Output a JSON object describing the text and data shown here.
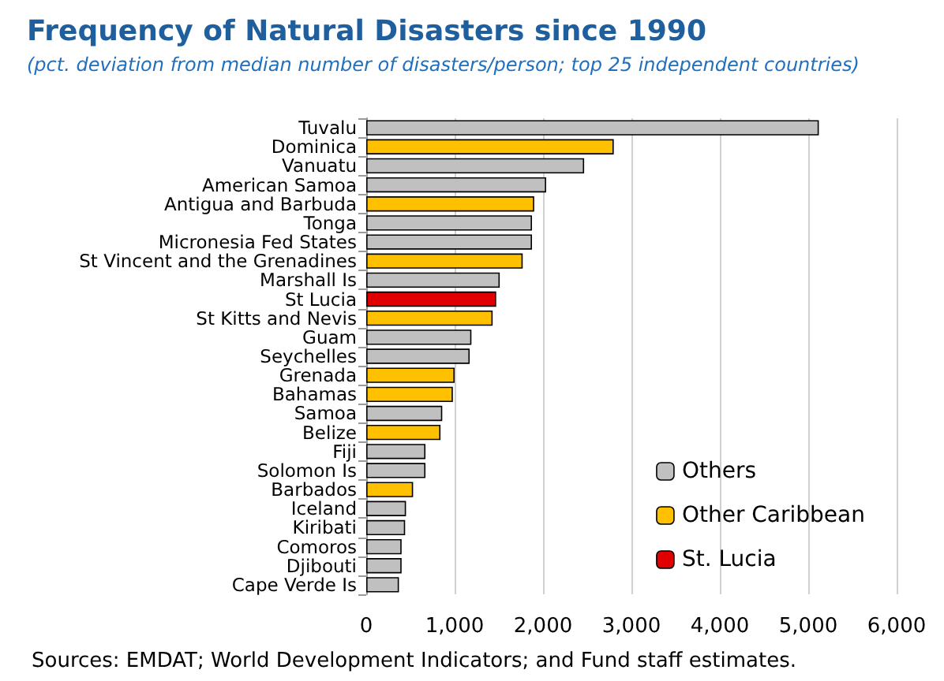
{
  "chart_data": {
    "type": "bar",
    "orientation": "horizontal",
    "stacked": true,
    "title": "Frequency of Natural Disasters since 1990",
    "subtitle": "(pct. deviation from median number of disasters/person; top 25 independent countries)",
    "categories": [
      "Tuvalu",
      "Dominica",
      "Vanuatu",
      "American Samoa",
      "Antigua and Barbuda",
      "Tonga",
      "Micronesia Fed States",
      "St Vincent and the Grenadines",
      "Marshall Is",
      "St Lucia",
      "St Kitts and Nevis",
      "Guam",
      "Seychelles",
      "Grenada",
      "Bahamas",
      "Samoa",
      "Belize",
      "Fiji",
      "Solomon Is",
      "Barbados",
      "Iceland",
      "Kiribati",
      "Comoros",
      "Djibouti",
      "Cape Verde Is"
    ],
    "series": [
      {
        "name": "Others",
        "color": "#c0c0c0",
        "values": [
          5120,
          null,
          2465,
          2035,
          null,
          1875,
          1875,
          null,
          1510,
          null,
          null,
          1190,
          1170,
          null,
          null,
          860,
          null,
          670,
          670,
          null,
          450,
          440,
          400,
          400,
          370
        ]
      },
      {
        "name": "Other Caribbean",
        "color": "#ffc000",
        "values": [
          null,
          2800,
          null,
          null,
          1900,
          null,
          null,
          1770,
          null,
          null,
          1430,
          null,
          null,
          1000,
          980,
          null,
          840,
          null,
          null,
          530,
          null,
          null,
          null,
          null,
          null
        ]
      },
      {
        "name": "St. Lucia",
        "color": "#e00000",
        "values": [
          null,
          null,
          null,
          null,
          null,
          null,
          null,
          null,
          null,
          1470,
          null,
          null,
          null,
          null,
          null,
          null,
          null,
          null,
          null,
          null,
          null,
          null,
          null,
          null,
          null
        ]
      }
    ],
    "xlim": [
      0,
      6000
    ],
    "xticks": [
      {
        "value": 0,
        "label": "0"
      },
      {
        "value": 1000,
        "label": "1,000"
      },
      {
        "value": 2000,
        "label": "2,000"
      },
      {
        "value": 3000,
        "label": "3,000"
      },
      {
        "value": 4000,
        "label": "4,000"
      },
      {
        "value": 5000,
        "label": "5,000"
      },
      {
        "value": 6000,
        "label": "6,000"
      }
    ],
    "grid": "x",
    "legend": "bottom right",
    "annotations": [
      "Sources: EMDAT; World Development Indicators; and Fund staff estimates."
    ]
  }
}
